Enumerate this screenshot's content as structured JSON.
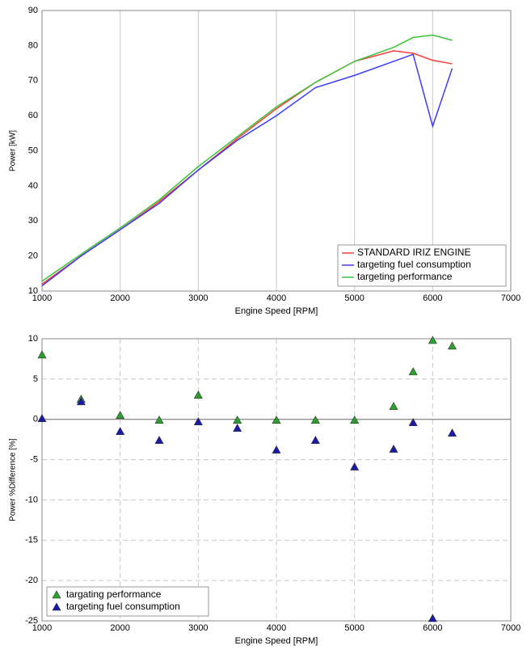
{
  "chart_data": [
    {
      "type": "line",
      "xlabel": "Engine Speed [RPM]",
      "ylabel": "Power [kW]",
      "x": [
        1000,
        1500,
        2000,
        2500,
        3000,
        3500,
        4000,
        4500,
        5000,
        5500,
        5750,
        6000,
        6250
      ],
      "series": [
        {
          "name": "STANDARD IRIZ ENGINE",
          "color": "#ff3b3b",
          "values": [
            12,
            20,
            27.5,
            35.5,
            44.5,
            53.5,
            62,
            69.5,
            75.5,
            78.5,
            77.8,
            75.8,
            74.8
          ]
        },
        {
          "name": "targeting fuel consumption",
          "color": "#3b3bff",
          "values": [
            11.5,
            20,
            27.5,
            35,
            44.5,
            53,
            60,
            68,
            71.5,
            75.5,
            77.5,
            57,
            73.5
          ]
        },
        {
          "name": "targeting performance",
          "color": "#3cc43c",
          "values": [
            12.8,
            20.5,
            28,
            36,
            45.5,
            54,
            62.5,
            69.5,
            75.5,
            79.5,
            82.3,
            83,
            81.5
          ]
        }
      ],
      "xlim": [
        1000,
        7000
      ],
      "xticks": [
        1000,
        2000,
        3000,
        4000,
        5000,
        6000,
        7000
      ],
      "ylim": [
        10,
        90
      ],
      "yticks": [
        10,
        20,
        30,
        40,
        50,
        60,
        70,
        80,
        90
      ],
      "grid": "x",
      "legend": "lower right"
    },
    {
      "type": "scatter",
      "xlabel": "Engine Speed [RPM]",
      "ylabel": "Power %Difference [%]",
      "x": [
        1000,
        1500,
        2000,
        2500,
        3000,
        3500,
        4000,
        4500,
        5000,
        5500,
        5750,
        6000,
        6250
      ],
      "series": [
        {
          "name": "targating performance",
          "color": "#2ca02c",
          "values": [
            8,
            2.5,
            0.5,
            -0.1,
            3,
            -0.1,
            -0.1,
            -0.1,
            -0.1,
            1.6,
            5.9,
            9.8,
            9.1
          ]
        },
        {
          "name": "targeting fuel consumption",
          "color": "#1a1aaa",
          "values": [
            0.1,
            2.2,
            -1.5,
            -2.6,
            -0.3,
            -1.1,
            -3.8,
            -2.6,
            -5.9,
            -3.7,
            -0.4,
            -24.7,
            -1.7
          ]
        }
      ],
      "xlim": [
        1000,
        7000
      ],
      "xticks": [
        1000,
        2000,
        3000,
        4000,
        5000,
        6000,
        7000
      ],
      "ylim": [
        -25,
        10
      ],
      "yticks": [
        -25,
        -20,
        -15,
        -10,
        -5,
        0,
        5,
        10
      ],
      "grid": "both",
      "legend": "lower left"
    }
  ]
}
